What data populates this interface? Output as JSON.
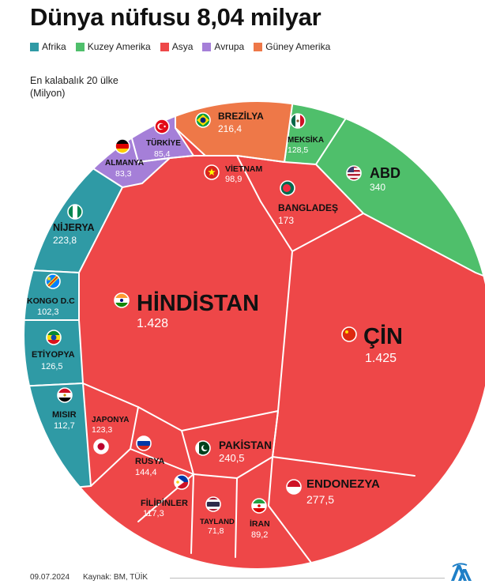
{
  "title": "Dünya nüfusu 8,04 milyar",
  "legend": [
    {
      "label": "Afrika",
      "color": "#2f9aa5"
    },
    {
      "label": "Kuzey Amerika",
      "color": "#4fbf6b"
    },
    {
      "label": "Asya",
      "color": "#ee4748"
    },
    {
      "label": "Avrupa",
      "color": "#a57fd8"
    },
    {
      "label": "Güney Amerika",
      "color": "#ee7848"
    }
  ],
  "subtitle_line1": "En kalabalık 20 ülke",
  "subtitle_line2": "(Milyon)",
  "chart_data": {
    "type": "voronoi-treemap",
    "unit": "Milyon",
    "regions": [
      "Afrika",
      "Kuzey Amerika",
      "Asya",
      "Avrupa",
      "Güney Amerika"
    ],
    "values": [
      {
        "name": "HİNDİSTAN",
        "value": "1.428",
        "region": "Asya",
        "flag": "india-flag"
      },
      {
        "name": "ÇİN",
        "value": "1.425",
        "region": "Asya",
        "flag": "china-flag"
      },
      {
        "name": "ABD",
        "value": "340",
        "region": "Kuzey Amerika",
        "flag": "usa-flag"
      },
      {
        "name": "ENDONEZYA",
        "value": "277,5",
        "region": "Asya",
        "flag": "indonesia-flag"
      },
      {
        "name": "PAKİSTAN",
        "value": "240,5",
        "region": "Asya",
        "flag": "pakistan-flag"
      },
      {
        "name": "NİJERYA",
        "value": "223,8",
        "region": "Afrika",
        "flag": "nigeria-flag"
      },
      {
        "name": "BREZİLYA",
        "value": "216,4",
        "region": "Güney Amerika",
        "flag": "brazil-flag"
      },
      {
        "name": "BANGLADEŞ",
        "value": "173",
        "region": "Asya",
        "flag": "bangladesh-flag"
      },
      {
        "name": "RUSYA",
        "value": "144,4",
        "region": "Avrupa",
        "flag": "russia-flag"
      },
      {
        "name": "MEKSİKA",
        "value": "128,5",
        "region": "Kuzey Amerika",
        "flag": "mexico-flag"
      },
      {
        "name": "ETİYOPYA",
        "value": "126,5",
        "region": "Afrika",
        "flag": "ethiopia-flag"
      },
      {
        "name": "JAPONYA",
        "value": "123,3",
        "region": "Asya",
        "flag": "japan-flag"
      },
      {
        "name": "FİLİPİNLER",
        "value": "117,3",
        "region": "Asya",
        "flag": "philippines-flag"
      },
      {
        "name": "MISIR",
        "value": "112,7",
        "region": "Afrika",
        "flag": "egypt-flag"
      },
      {
        "name": "KONGO D.C",
        "value": "102,3",
        "region": "Afrika",
        "flag": "drc-flag"
      },
      {
        "name": "VİETNAM",
        "value": "98,9",
        "region": "Asya",
        "flag": "vietnam-flag"
      },
      {
        "name": "İRAN",
        "value": "89,2",
        "region": "Asya",
        "flag": "iran-flag"
      },
      {
        "name": "TÜRKİYE",
        "value": "85,4",
        "region": "Asya",
        "flag": "turkey-flag"
      },
      {
        "name": "ALMANYA",
        "value": "83,3",
        "region": "Avrupa",
        "flag": "germany-flag"
      },
      {
        "name": "TAYLAND",
        "value": "71,8",
        "region": "Asya",
        "flag": "thailand-flag"
      }
    ]
  },
  "footer": {
    "date": "09.07.2024",
    "source": "Kaynak: BM, TÜİK",
    "logo": "aa-logo-icon"
  }
}
